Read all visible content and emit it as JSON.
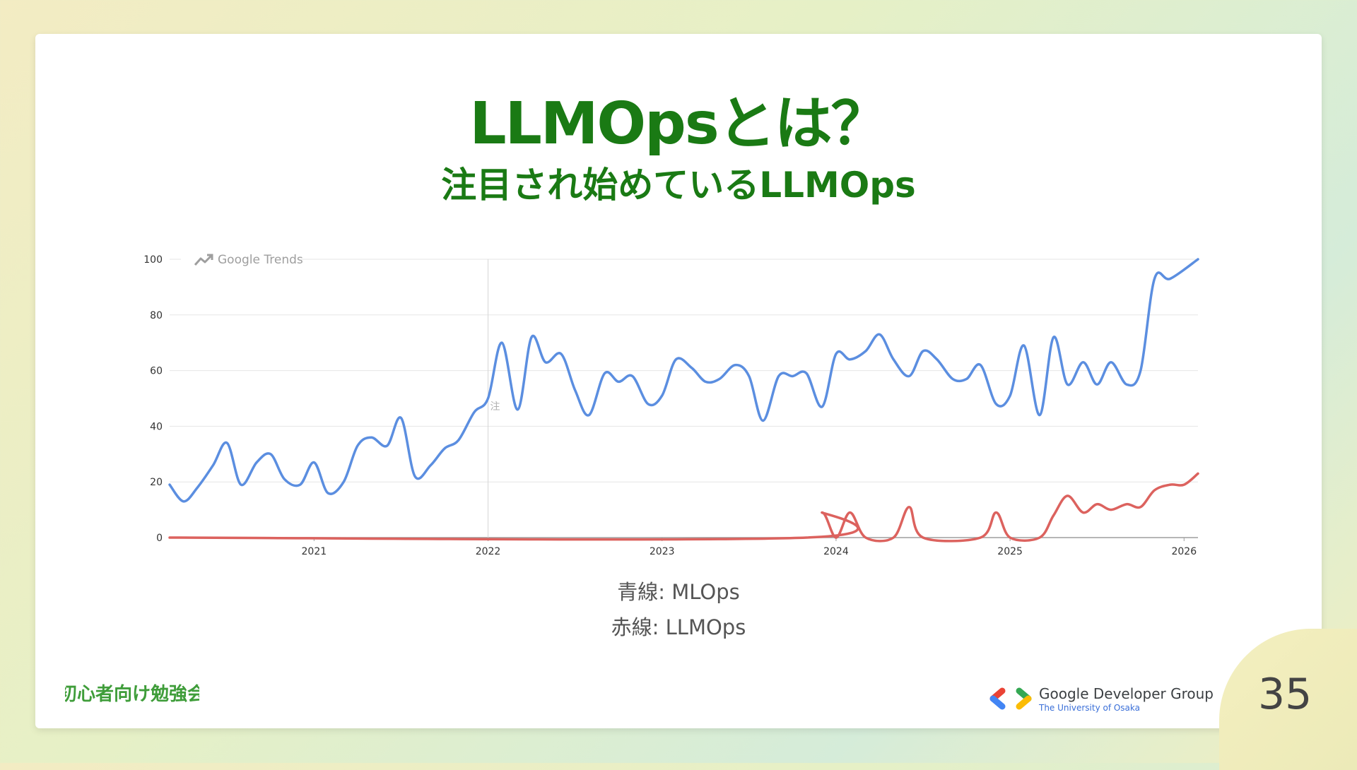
{
  "slide": {
    "title": "LLMOpsとは？",
    "subtitle": "注目され始めているLLMOps",
    "legend_blue": "青線: MLOps",
    "legend_red": "赤線: LLMOps",
    "page_number": "35",
    "event_logo_text": "初心者向け勉強会",
    "gdg_name": "Google Developer Group",
    "gdg_sub": "The University of Osaka"
  },
  "colors": {
    "title": "#1a7a14",
    "mlops": "#5b8ee0",
    "llmops": "#dc625e",
    "grid": "#e6e6e6"
  },
  "chart_data": {
    "type": "line",
    "title": "",
    "watermark": "Google Trends",
    "xlabel": "",
    "ylabel": "",
    "ylim": [
      0,
      100
    ],
    "yticks": [
      0,
      20,
      40,
      60,
      80,
      100
    ],
    "xlim": [
      2020.17,
      2026.08
    ],
    "xticks": [
      2021,
      2022,
      2023,
      2024,
      2025,
      2026
    ],
    "xtick_labels": [
      "2021",
      "2022",
      "2023",
      "2024",
      "2025",
      "2026"
    ],
    "annotation_marker": {
      "x": 2022.0,
      "label": "注"
    },
    "series": [
      {
        "name": "MLOps",
        "color": "#5b8ee0",
        "points": [
          [
            2020.17,
            19
          ],
          [
            2020.25,
            13
          ],
          [
            2020.33,
            18
          ],
          [
            2020.42,
            26
          ],
          [
            2020.5,
            34
          ],
          [
            2020.58,
            19
          ],
          [
            2020.67,
            27
          ],
          [
            2020.75,
            30
          ],
          [
            2020.83,
            21
          ],
          [
            2020.92,
            19
          ],
          [
            2021.0,
            27
          ],
          [
            2021.08,
            16
          ],
          [
            2021.17,
            20
          ],
          [
            2021.25,
            33
          ],
          [
            2021.33,
            36
          ],
          [
            2021.42,
            33
          ],
          [
            2021.5,
            43
          ],
          [
            2021.58,
            22
          ],
          [
            2021.67,
            26
          ],
          [
            2021.75,
            32
          ],
          [
            2021.83,
            35
          ],
          [
            2021.92,
            45
          ],
          [
            2022.0,
            50
          ],
          [
            2022.08,
            70
          ],
          [
            2022.17,
            46
          ],
          [
            2022.25,
            72
          ],
          [
            2022.33,
            63
          ],
          [
            2022.42,
            66
          ],
          [
            2022.5,
            53
          ],
          [
            2022.58,
            44
          ],
          [
            2022.67,
            59
          ],
          [
            2022.75,
            56
          ],
          [
            2022.83,
            58
          ],
          [
            2022.92,
            48
          ],
          [
            2023.0,
            51
          ],
          [
            2023.08,
            64
          ],
          [
            2023.17,
            61
          ],
          [
            2023.25,
            56
          ],
          [
            2023.33,
            57
          ],
          [
            2023.42,
            62
          ],
          [
            2023.5,
            58
          ],
          [
            2023.58,
            42
          ],
          [
            2023.67,
            58
          ],
          [
            2023.75,
            58
          ],
          [
            2023.83,
            59
          ],
          [
            2023.92,
            47
          ],
          [
            2024.0,
            66
          ],
          [
            2024.08,
            64
          ],
          [
            2024.17,
            67
          ],
          [
            2024.25,
            73
          ],
          [
            2024.33,
            64
          ],
          [
            2024.42,
            58
          ],
          [
            2024.5,
            67
          ],
          [
            2024.58,
            64
          ],
          [
            2024.67,
            57
          ],
          [
            2024.75,
            57
          ],
          [
            2024.83,
            62
          ],
          [
            2024.92,
            48
          ],
          [
            2025.0,
            51
          ],
          [
            2025.08,
            69
          ],
          [
            2025.17,
            44
          ],
          [
            2025.25,
            72
          ],
          [
            2025.33,
            55
          ],
          [
            2025.42,
            63
          ],
          [
            2025.5,
            55
          ],
          [
            2025.58,
            63
          ],
          [
            2025.67,
            55
          ],
          [
            2025.75,
            60
          ],
          [
            2025.83,
            93
          ],
          [
            2025.92,
            93
          ],
          [
            2026.08,
            100
          ]
        ]
      },
      {
        "name": "LLMOps",
        "color": "#dc625e",
        "points": [
          [
            2020.17,
            0
          ],
          [
            2023.83,
            0
          ],
          [
            2023.92,
            9
          ],
          [
            2024.0,
            0
          ],
          [
            2024.08,
            9
          ],
          [
            2024.17,
            0
          ],
          [
            2024.33,
            0
          ],
          [
            2024.42,
            11
          ],
          [
            2024.5,
            0
          ],
          [
            2024.83,
            0
          ],
          [
            2024.92,
            9
          ],
          [
            2025.0,
            0
          ],
          [
            2025.17,
            0
          ],
          [
            2025.25,
            8
          ],
          [
            2025.33,
            15
          ],
          [
            2025.42,
            9
          ],
          [
            2025.5,
            12
          ],
          [
            2025.58,
            10
          ],
          [
            2025.67,
            12
          ],
          [
            2025.75,
            11
          ],
          [
            2025.83,
            17
          ],
          [
            2025.92,
            19
          ],
          [
            2026.0,
            19
          ],
          [
            2026.08,
            23
          ]
        ]
      }
    ]
  }
}
